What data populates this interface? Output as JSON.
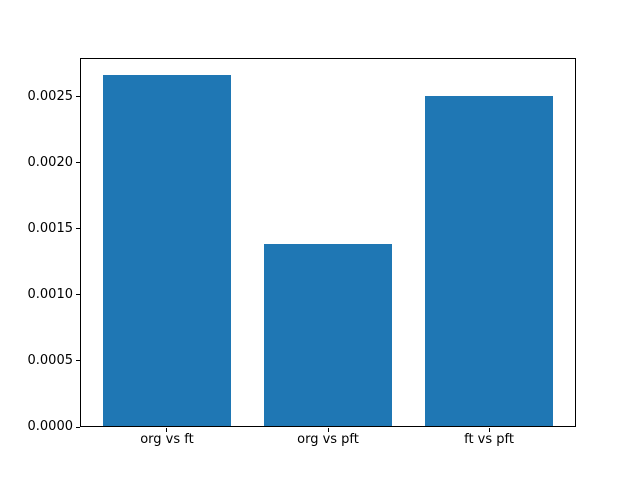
{
  "chart_data": {
    "type": "bar",
    "title": "",
    "xlabel": "",
    "ylabel": "",
    "categories": [
      "org vs ft",
      "org vs pft",
      "ft vs pft"
    ],
    "values": [
      0.00266,
      0.00138,
      0.0025
    ],
    "ylim": [
      0,
      0.002793
    ],
    "yticks": [
      0.0,
      0.0005,
      0.001,
      0.0015,
      0.002,
      0.0025
    ],
    "ytick_labels": [
      "0.0000",
      "0.0005",
      "0.0010",
      "0.0015",
      "0.0020",
      "0.0025"
    ],
    "bar_color": "#1f77b4",
    "spine_color": "#000000",
    "background_color": "#ffffff",
    "grid": false,
    "legend": null
  }
}
